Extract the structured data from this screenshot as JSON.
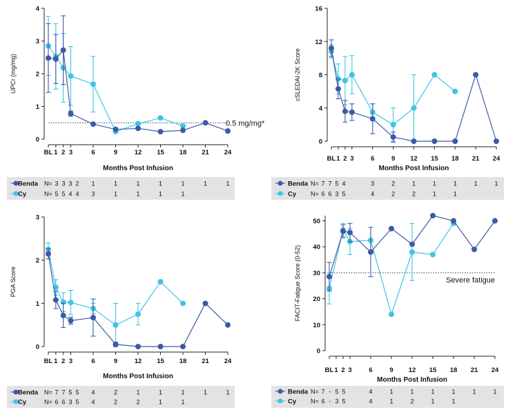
{
  "colors": {
    "benda": "#3d5aa8",
    "cy": "#3fc3e6",
    "table_bg": "#e3e3e3"
  },
  "series_names": [
    "Benda",
    "Cy"
  ],
  "chart_data": [
    {
      "type": "line",
      "ylabel": "UPCr (mg/mg)",
      "xlabel": "Months Post Infusion",
      "ylim": [
        0,
        4
      ],
      "yticks": [
        0,
        1,
        2,
        3,
        4
      ],
      "x_ticks": [
        0,
        1,
        2,
        3,
        6,
        9,
        12,
        15,
        18,
        21,
        24
      ],
      "x_tick_labels": [
        "BL",
        "1",
        "2",
        "3",
        "6",
        "9",
        "12",
        "15",
        "18",
        "21",
        "24"
      ],
      "reference": {
        "y": 0.5,
        "label": "0.5 mg/mg*"
      },
      "series": [
        {
          "name": "Benda",
          "x": [
            0,
            1,
            2,
            3,
            6,
            9,
            12,
            15,
            18,
            21,
            24
          ],
          "y": [
            2.48,
            2.45,
            2.72,
            0.78,
            0.46,
            0.3,
            0.33,
            0.23,
            0.27,
            0.5,
            0.25
          ],
          "err": [
            1.05,
            0.75,
            1.05,
            0.08,
            0,
            0,
            0,
            0,
            0,
            0,
            0
          ]
        },
        {
          "name": "Cy",
          "x": [
            0,
            1,
            2,
            3,
            6,
            9,
            12,
            15,
            18
          ],
          "y": [
            2.85,
            2.53,
            2.18,
            1.93,
            1.68,
            0.23,
            0.47,
            0.65,
            0.4
          ],
          "err": [
            0.9,
            1.0,
            1.05,
            0.9,
            0.85,
            0,
            0,
            0,
            0
          ]
        }
      ],
      "n_table": {
        "x": [
          0,
          1,
          2,
          3,
          6,
          9,
          12,
          15,
          18,
          21,
          24
        ],
        "Benda": [
          "3",
          "3",
          "3",
          "2",
          "1",
          "1",
          "1",
          "1",
          "1",
          "1",
          "1"
        ],
        "Cy": [
          "5",
          "5",
          "4",
          "4",
          "3",
          "1",
          "1",
          "1",
          "1",
          "",
          ""
        ]
      }
    },
    {
      "type": "line",
      "ylabel": "cSLEDAI-2K Score",
      "xlabel": "Months Post Infusion",
      "ylim": [
        0,
        16
      ],
      "yticks": [
        0,
        4,
        8,
        12,
        16
      ],
      "x_ticks": [
        0,
        1,
        2,
        3,
        6,
        9,
        12,
        15,
        18,
        21,
        24
      ],
      "x_tick_labels": [
        "BL",
        "1",
        "2",
        "3",
        "6",
        "9",
        "12",
        "15",
        "18",
        "21",
        "24"
      ],
      "series": [
        {
          "name": "Benda",
          "x": [
            0,
            1,
            2,
            3,
            6,
            9,
            12,
            15,
            18,
            21,
            24
          ],
          "y": [
            11.2,
            6.3,
            3.6,
            3.5,
            2.7,
            0.5,
            0,
            0,
            0,
            8,
            0
          ],
          "err": [
            1.0,
            1.2,
            1.3,
            1.0,
            1.8,
            0.6,
            0,
            0,
            0,
            0,
            0
          ]
        },
        {
          "name": "Cy",
          "x": [
            0,
            1,
            2,
            3,
            6,
            9,
            12,
            15,
            18
          ],
          "y": [
            10.8,
            7.5,
            7.3,
            8.0,
            3.5,
            2.0,
            4.0,
            8.0,
            6.0
          ],
          "err": [
            0.8,
            1.8,
            2.9,
            2.3,
            1.0,
            2.0,
            4.0,
            0,
            0
          ]
        }
      ],
      "n_table": {
        "x": [
          0,
          1,
          2,
          3,
          6,
          9,
          12,
          15,
          18,
          21,
          24
        ],
        "Benda": [
          "7",
          "7",
          "5",
          "4",
          "3",
          "2",
          "1",
          "1",
          "1",
          "1",
          "1"
        ],
        "Cy": [
          "6",
          "6",
          "3",
          "5",
          "4",
          "2",
          "2",
          "1",
          "1",
          "",
          ""
        ]
      }
    },
    {
      "type": "line",
      "ylabel": "PGA Score",
      "xlabel": "Months Post Infusion",
      "ylim": [
        0,
        3
      ],
      "yticks": [
        0,
        1,
        2,
        3
      ],
      "x_ticks": [
        0,
        1,
        2,
        3,
        6,
        9,
        12,
        15,
        18,
        21,
        24
      ],
      "x_tick_labels": [
        "BL",
        "1",
        "2",
        "3",
        "6",
        "9",
        "12",
        "15",
        "18",
        "21",
        "24"
      ],
      "series": [
        {
          "name": "Benda",
          "x": [
            0,
            1,
            2,
            3,
            6,
            9,
            12,
            15,
            18,
            21,
            24
          ],
          "y": [
            2.15,
            1.08,
            0.72,
            0.6,
            0.67,
            0.05,
            0,
            0,
            0,
            1.0,
            0.5
          ],
          "err": [
            0.12,
            0.2,
            0.28,
            0.08,
            0.43,
            0.05,
            0,
            0,
            0,
            0,
            0
          ]
        },
        {
          "name": "Cy",
          "x": [
            0,
            1,
            2,
            3,
            6,
            9,
            12,
            15,
            18
          ],
          "y": [
            2.25,
            1.37,
            1.03,
            1.02,
            0.88,
            0.5,
            0.75,
            1.5,
            1.0
          ],
          "err": [
            0.15,
            0.18,
            0.22,
            0.28,
            0.12,
            0.5,
            0.25,
            0,
            0
          ]
        }
      ],
      "n_table": {
        "x": [
          0,
          1,
          2,
          3,
          6,
          9,
          12,
          15,
          18,
          21,
          24
        ],
        "Benda": [
          "7",
          "7",
          "5",
          "5",
          "4",
          "2",
          "1",
          "1",
          "1",
          "1",
          "1"
        ],
        "Cy": [
          "6",
          "6",
          "3",
          "5",
          "4",
          "2",
          "2",
          "1",
          "1",
          "",
          ""
        ]
      }
    },
    {
      "type": "line",
      "ylabel": "FACIT-Fatigue Score (0-52)",
      "xlabel": "Months Post Infusion",
      "ylim": [
        0,
        52
      ],
      "yticks": [
        0,
        10,
        20,
        30,
        40,
        50
      ],
      "x_ticks": [
        0,
        1,
        2,
        3,
        6,
        9,
        12,
        15,
        18,
        21,
        24
      ],
      "x_tick_labels": [
        "BL",
        "1",
        "2",
        "3",
        "6",
        "9",
        "12",
        "15",
        "18",
        "21",
        "24"
      ],
      "reference": {
        "y": 30,
        "label": "Severe fatigue"
      },
      "series": [
        {
          "name": "Benda",
          "x": [
            0,
            2,
            3,
            6,
            9,
            12,
            15,
            18,
            21,
            24
          ],
          "y": [
            28.5,
            46,
            45.5,
            38,
            47,
            41,
            52,
            50,
            39,
            50
          ],
          "err": [
            5.5,
            2.5,
            3.5,
            9.5,
            0,
            0,
            0,
            0,
            0,
            0
          ]
        },
        {
          "name": "Cy",
          "x": [
            0,
            2,
            3,
            6,
            9,
            12,
            15,
            18
          ],
          "y": [
            24,
            46.5,
            42,
            42.5,
            14,
            38,
            37,
            49
          ],
          "err": [
            6,
            2.5,
            5,
            5,
            0,
            11,
            0,
            0
          ]
        }
      ],
      "n_table": {
        "x": [
          0,
          1,
          2,
          3,
          6,
          9,
          12,
          15,
          18,
          21,
          24
        ],
        "Benda": [
          "7",
          "-",
          "5",
          "5",
          "4",
          "1",
          "1",
          "1",
          "1",
          "1",
          "1"
        ],
        "Cy": [
          "6",
          "-",
          "3",
          "5",
          "4",
          "1",
          "2",
          "1",
          "1",
          "",
          ""
        ]
      }
    }
  ]
}
